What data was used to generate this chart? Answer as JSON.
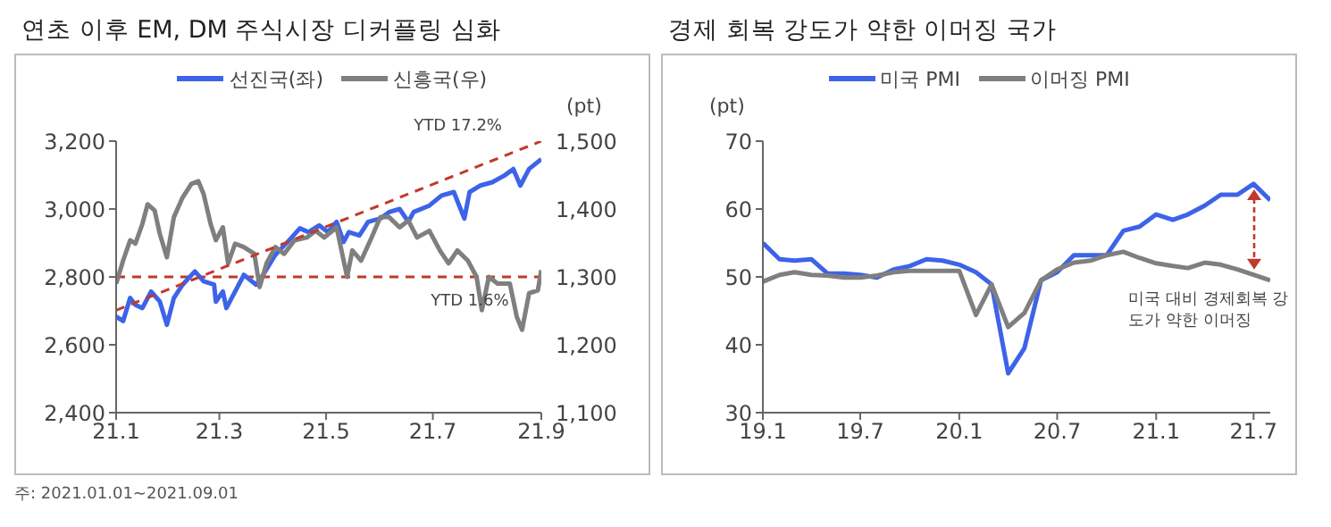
{
  "chart_data": [
    {
      "type": "line",
      "title": "연초 이후 EM, DM 주식시장 디커플링 심화",
      "y2label": "(pt)",
      "legend": "top",
      "marker": "none",
      "grid": false,
      "xlim": [
        "2021-01-01",
        "2021-09-01"
      ],
      "xticks": [
        {
          "value": "2021-01-01",
          "label": "21.1"
        },
        {
          "value": "2021-03-01",
          "label": "21.3"
        },
        {
          "value": "2021-05-01",
          "label": "21.5"
        },
        {
          "value": "2021-07-01",
          "label": "21.7"
        },
        {
          "value": "2021-09-01",
          "label": "21.9"
        }
      ],
      "ylim": [
        2400,
        3200
      ],
      "yticks": [
        {
          "value": 2400,
          "label": "2,400"
        },
        {
          "value": 2600,
          "label": "2,600"
        },
        {
          "value": 2800,
          "label": "2,800"
        },
        {
          "value": 3000,
          "label": "3,000"
        },
        {
          "value": 3200,
          "label": "3,200"
        }
      ],
      "y2lim": [
        1100,
        1500
      ],
      "y2ticks": [
        {
          "value": 1100,
          "label": "1,100"
        },
        {
          "value": 1200,
          "label": "1,200"
        },
        {
          "value": 1300,
          "label": "1,300"
        },
        {
          "value": 1400,
          "label": "1,400"
        },
        {
          "value": 1500,
          "label": "1,500"
        }
      ],
      "series": [
        {
          "name": "선진국(좌)",
          "color": "#3d63e8",
          "x": [
            "2021-01-01",
            "2021-01-05",
            "2021-01-09",
            "2021-01-12",
            "2021-01-16",
            "2021-01-21",
            "2021-01-26",
            "2021-01-30",
            "2021-02-03",
            "2021-02-08",
            "2021-02-15",
            "2021-02-20",
            "2021-02-26",
            "2021-02-27",
            "2021-03-03",
            "2021-03-05",
            "2021-03-10",
            "2021-03-15",
            "2021-03-22",
            "2021-03-26",
            "2021-04-02",
            "2021-04-09",
            "2021-04-16",
            "2021-04-21",
            "2021-04-27",
            "2021-05-02",
            "2021-05-07",
            "2021-05-11",
            "2021-05-14",
            "2021-05-20",
            "2021-05-25",
            "2021-06-01",
            "2021-06-06",
            "2021-06-12",
            "2021-06-17",
            "2021-06-20",
            "2021-06-29",
            "2021-07-06",
            "2021-07-13",
            "2021-07-19",
            "2021-07-22",
            "2021-07-28",
            "2021-08-04",
            "2021-08-11",
            "2021-08-16",
            "2021-08-20",
            "2021-08-25",
            "2021-09-01"
          ],
          "values": [
            2683,
            2670,
            2738,
            2718,
            2708,
            2757,
            2727,
            2659,
            2738,
            2777,
            2816,
            2787,
            2777,
            2727,
            2757,
            2708,
            2757,
            2806,
            2777,
            2806,
            2865,
            2903,
            2943,
            2932,
            2952,
            2932,
            2962,
            2903,
            2932,
            2922,
            2962,
            2972,
            2991,
            3000,
            2962,
            2991,
            3010,
            3040,
            3050,
            2972,
            3050,
            3069,
            3079,
            3099,
            3118,
            3069,
            3118,
            3147
          ]
        },
        {
          "name": "신흥국(우)",
          "color": "#7f7f7f",
          "axis": "y2",
          "x": [
            "2021-01-01",
            "2021-01-05",
            "2021-01-09",
            "2021-01-12",
            "2021-01-16",
            "2021-01-19",
            "2021-01-23",
            "2021-01-26",
            "2021-01-30",
            "2021-02-03",
            "2021-02-08",
            "2021-02-13",
            "2021-02-17",
            "2021-02-20",
            "2021-02-24",
            "2021-02-27",
            "2021-03-03",
            "2021-03-06",
            "2021-03-10",
            "2021-03-15",
            "2021-03-21",
            "2021-03-24",
            "2021-03-28",
            "2021-04-02",
            "2021-04-07",
            "2021-04-13",
            "2021-04-20",
            "2021-04-25",
            "2021-04-30",
            "2021-05-07",
            "2021-05-13",
            "2021-05-16",
            "2021-05-21",
            "2021-05-27",
            "2021-06-01",
            "2021-06-06",
            "2021-06-12",
            "2021-06-17",
            "2021-06-22",
            "2021-06-29",
            "2021-07-05",
            "2021-07-10",
            "2021-07-15",
            "2021-07-21",
            "2021-07-26",
            "2021-07-29",
            "2021-08-02",
            "2021-08-07",
            "2021-08-14",
            "2021-08-18",
            "2021-08-21",
            "2021-08-25",
            "2021-08-30",
            "2021-09-01"
          ],
          "values": [
            1290,
            1324,
            1354,
            1349,
            1378,
            1407,
            1398,
            1363,
            1329,
            1388,
            1417,
            1437,
            1441,
            1422,
            1378,
            1354,
            1373,
            1320,
            1349,
            1344,
            1334,
            1285,
            1320,
            1344,
            1334,
            1354,
            1358,
            1368,
            1358,
            1373,
            1300,
            1339,
            1324,
            1358,
            1388,
            1388,
            1373,
            1383,
            1358,
            1368,
            1339,
            1320,
            1339,
            1324,
            1300,
            1251,
            1300,
            1290,
            1290,
            1241,
            1222,
            1276,
            1280,
            1310
          ]
        },
        {
          "type": "line",
          "color": "#c0392b",
          "line_style": "dashed",
          "x": [
            "2021-01-01",
            "2021-09-01"
          ],
          "values": [
            2702,
            3200
          ]
        }
      ],
      "ref_lines": [
        {
          "axis": "y",
          "value": 2800,
          "color": "#c0392b",
          "line_style": "dashed"
        }
      ],
      "annotations": [
        "YTD 17.2%",
        "YTD 1.6%",
        "주: 2021.01.01~2021.09.01"
      ]
    },
    {
      "type": "line",
      "title": "경제 회복 강도가 약한 이머징 국가",
      "ylabel": "(pt)",
      "legend": "top",
      "marker": "none",
      "grid": false,
      "xlim": [
        "2019-01",
        "2021-08"
      ],
      "xticks": [
        {
          "value": "2019-01",
          "label": "19.1"
        },
        {
          "value": "2019-07",
          "label": "19.7"
        },
        {
          "value": "2020-01",
          "label": "20.1"
        },
        {
          "value": "2020-07",
          "label": "20.7"
        },
        {
          "value": "2021-01",
          "label": "21.1"
        },
        {
          "value": "2021-07",
          "label": "21.7"
        }
      ],
      "ylim": [
        30,
        70
      ],
      "yticks": [
        30,
        40,
        50,
        60,
        70
      ],
      "x": [
        "2019-01",
        "2019-02",
        "2019-03",
        "2019-04",
        "2019-05",
        "2019-06",
        "2019-07",
        "2019-08",
        "2019-09",
        "2019-10",
        "2019-11",
        "2019-12",
        "2020-01",
        "2020-02",
        "2020-03",
        "2020-04",
        "2020-05",
        "2020-06",
        "2020-07",
        "2020-08",
        "2020-09",
        "2020-10",
        "2020-11",
        "2020-12",
        "2021-01",
        "2021-02",
        "2021-03",
        "2021-04",
        "2021-05",
        "2021-06",
        "2021-07",
        "2021-08"
      ],
      "series": [
        {
          "name": "미국 PMI",
          "color": "#3d63e8",
          "values": [
            55.0,
            52.6,
            52.4,
            52.6,
            50.5,
            50.5,
            50.3,
            49.9,
            51.1,
            51.6,
            52.6,
            52.4,
            51.8,
            50.7,
            48.9,
            35.8,
            39.5,
            49.5,
            50.7,
            53.2,
            53.2,
            53.2,
            56.8,
            57.4,
            59.2,
            58.4,
            59.2,
            60.5,
            62.1,
            62.1,
            63.7,
            61.3
          ]
        },
        {
          "name": "이머징 PMI",
          "color": "#7f7f7f",
          "values": [
            49.3,
            50.3,
            50.7,
            50.3,
            50.2,
            49.9,
            49.9,
            50.2,
            50.7,
            50.9,
            50.9,
            50.9,
            50.9,
            44.4,
            48.9,
            42.6,
            44.7,
            49.5,
            51.1,
            52.1,
            52.4,
            53.2,
            53.7,
            52.8,
            52.0,
            51.6,
            51.3,
            52.1,
            51.8,
            51.1,
            50.3,
            49.5
          ]
        }
      ],
      "annotations": [
        {
          "text": "미국 대비 경제회복 강도가 약한 이머징",
          "x": "2021-07",
          "y": 50.3
        }
      ]
    }
  ]
}
